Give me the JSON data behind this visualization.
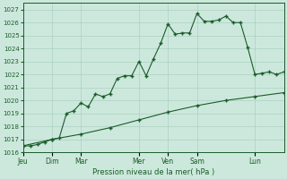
{
  "xlabel": "Pression niveau de la mer( hPa )",
  "background_color": "#cce8dc",
  "grid_color": "#aad0c0",
  "line_color": "#1a5c2a",
  "ylim": [
    1016,
    1027.5
  ],
  "yticks": [
    1016,
    1017,
    1018,
    1019,
    1020,
    1021,
    1022,
    1023,
    1024,
    1025,
    1026,
    1027
  ],
  "days": [
    "Jeu",
    "Dim",
    "Mar",
    "Mer",
    "Ven",
    "Sam",
    "Lun"
  ],
  "day_x": [
    0,
    16,
    32,
    64,
    80,
    96,
    128
  ],
  "xlim": [
    0,
    144
  ],
  "series1_x": [
    0,
    4,
    8,
    12,
    16,
    20,
    24,
    28,
    32,
    36,
    40,
    44,
    48,
    52,
    56,
    60,
    64,
    68,
    72,
    76,
    80,
    84,
    88,
    92,
    96,
    100,
    104,
    108,
    112,
    116,
    120,
    124,
    128,
    132,
    136,
    140,
    144
  ],
  "series1_y": [
    1016.5,
    1016.5,
    1016.6,
    1016.8,
    1017.0,
    1017.1,
    1019.0,
    1019.2,
    1019.8,
    1019.5,
    1020.5,
    1020.3,
    1020.5,
    1021.7,
    1021.9,
    1021.9,
    1023.0,
    1021.9,
    1023.2,
    1024.4,
    1025.9,
    1025.1,
    1025.2,
    1025.2,
    1026.7,
    1026.1,
    1026.1,
    1026.2,
    1026.5,
    1026.0,
    1026.0,
    1024.1,
    1022.0,
    1022.1,
    1022.2,
    1022.0,
    1022.2
  ],
  "series2_x": [
    0,
    16,
    32,
    48,
    64,
    80,
    96,
    112,
    128,
    144
  ],
  "series2_y": [
    1016.5,
    1017.0,
    1017.4,
    1017.9,
    1018.5,
    1019.1,
    1019.6,
    1020.0,
    1020.3,
    1020.6
  ],
  "marker": "+",
  "marker_size": 3,
  "linewidth": 0.8
}
